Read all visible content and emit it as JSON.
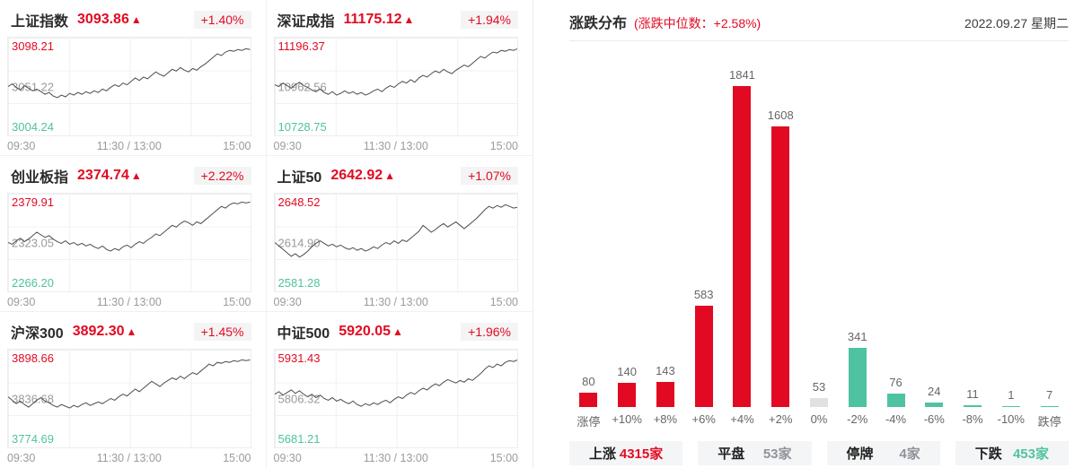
{
  "colors": {
    "up": "#e20a22",
    "down": "#4fc3a1",
    "neutral_bar": "#e1e1e1",
    "muted": "#8f9399",
    "line": "#4d4d4d",
    "grid": "#ededed",
    "badge_bg": "#f4f4f4",
    "stat_bg": "#f4f5f7",
    "axis": "#999999"
  },
  "mini_charts": [
    {
      "name": "上证指数",
      "price": "3093.86",
      "arrow": "▲",
      "change": "+1.40%",
      "high": "3098.21",
      "mid": "3051.22",
      "low": "3004.24",
      "x_labels": [
        "09:30",
        "11:30 / 13:00",
        "15:00"
      ],
      "points": [
        0.5,
        0.53,
        0.49,
        0.46,
        0.51,
        0.48,
        0.45,
        0.47,
        0.44,
        0.41,
        0.43,
        0.39,
        0.37,
        0.4,
        0.38,
        0.42,
        0.4,
        0.43,
        0.41,
        0.44,
        0.42,
        0.45,
        0.43,
        0.47,
        0.45,
        0.49,
        0.52,
        0.5,
        0.54,
        0.52,
        0.56,
        0.6,
        0.57,
        0.61,
        0.59,
        0.63,
        0.67,
        0.64,
        0.62,
        0.66,
        0.7,
        0.68,
        0.72,
        0.69,
        0.67,
        0.71,
        0.69,
        0.73,
        0.76,
        0.8,
        0.84,
        0.88,
        0.86,
        0.9,
        0.92,
        0.91,
        0.93,
        0.92,
        0.94,
        0.93
      ]
    },
    {
      "name": "深证成指",
      "price": "11175.12",
      "arrow": "▲",
      "change": "+1.94%",
      "high": "11196.37",
      "mid": "10962.56",
      "low": "10728.75",
      "x_labels": [
        "09:30",
        "11:30 / 13:00",
        "15:00"
      ],
      "points": [
        0.52,
        0.5,
        0.54,
        0.51,
        0.48,
        0.52,
        0.55,
        0.51,
        0.49,
        0.46,
        0.44,
        0.47,
        0.43,
        0.41,
        0.44,
        0.4,
        0.42,
        0.45,
        0.42,
        0.44,
        0.41,
        0.43,
        0.4,
        0.42,
        0.45,
        0.47,
        0.44,
        0.48,
        0.51,
        0.49,
        0.53,
        0.56,
        0.54,
        0.58,
        0.55,
        0.6,
        0.63,
        0.61,
        0.65,
        0.68,
        0.66,
        0.7,
        0.67,
        0.65,
        0.69,
        0.72,
        0.75,
        0.73,
        0.77,
        0.81,
        0.85,
        0.83,
        0.87,
        0.9,
        0.89,
        0.92,
        0.91,
        0.93,
        0.92,
        0.94
      ]
    },
    {
      "name": "创业板指",
      "price": "2374.74",
      "arrow": "▲",
      "change": "+2.22%",
      "high": "2379.91",
      "mid": "2323.05",
      "low": "2266.20",
      "x_labels": [
        "09:30",
        "11:30 / 13:00",
        "15:00"
      ],
      "points": [
        0.5,
        0.48,
        0.52,
        0.55,
        0.51,
        0.54,
        0.58,
        0.62,
        0.59,
        0.56,
        0.58,
        0.54,
        0.51,
        0.49,
        0.52,
        0.48,
        0.5,
        0.47,
        0.49,
        0.46,
        0.48,
        0.45,
        0.43,
        0.46,
        0.42,
        0.4,
        0.43,
        0.41,
        0.45,
        0.47,
        0.44,
        0.48,
        0.51,
        0.49,
        0.53,
        0.56,
        0.6,
        0.58,
        0.62,
        0.66,
        0.7,
        0.68,
        0.72,
        0.75,
        0.73,
        0.7,
        0.74,
        0.72,
        0.76,
        0.8,
        0.84,
        0.88,
        0.92,
        0.9,
        0.94,
        0.96,
        0.95,
        0.97,
        0.96,
        0.97
      ]
    },
    {
      "name": "上证50",
      "price": "2642.92",
      "arrow": "▲",
      "change": "+1.07%",
      "high": "2648.52",
      "mid": "2614.90",
      "low": "2581.28",
      "x_labels": [
        "09:30",
        "11:30 / 13:00",
        "15:00"
      ],
      "points": [
        0.5,
        0.46,
        0.42,
        0.38,
        0.34,
        0.37,
        0.33,
        0.36,
        0.4,
        0.45,
        0.49,
        0.52,
        0.49,
        0.46,
        0.48,
        0.45,
        0.47,
        0.44,
        0.42,
        0.44,
        0.41,
        0.43,
        0.4,
        0.42,
        0.45,
        0.43,
        0.47,
        0.5,
        0.48,
        0.52,
        0.49,
        0.53,
        0.51,
        0.55,
        0.59,
        0.63,
        0.7,
        0.66,
        0.62,
        0.65,
        0.69,
        0.72,
        0.68,
        0.71,
        0.74,
        0.7,
        0.66,
        0.7,
        0.74,
        0.78,
        0.83,
        0.88,
        0.92,
        0.9,
        0.93,
        0.91,
        0.94,
        0.92,
        0.9,
        0.91
      ]
    },
    {
      "name": "沪深300",
      "price": "3892.30",
      "arrow": "▲",
      "change": "+1.45%",
      "high": "3898.66",
      "mid": "3836.68",
      "low": "3774.69",
      "x_labels": [
        "09:30",
        "11:30 / 13:00",
        "15:00"
      ],
      "points": [
        0.52,
        0.48,
        0.44,
        0.47,
        0.43,
        0.4,
        0.44,
        0.48,
        0.51,
        0.47,
        0.45,
        0.42,
        0.4,
        0.43,
        0.41,
        0.39,
        0.42,
        0.4,
        0.43,
        0.45,
        0.42,
        0.44,
        0.46,
        0.44,
        0.47,
        0.5,
        0.48,
        0.52,
        0.55,
        0.53,
        0.57,
        0.61,
        0.58,
        0.62,
        0.66,
        0.7,
        0.67,
        0.64,
        0.68,
        0.71,
        0.74,
        0.72,
        0.76,
        0.73,
        0.77,
        0.8,
        0.78,
        0.82,
        0.86,
        0.9,
        0.88,
        0.92,
        0.91,
        0.93,
        0.92,
        0.94,
        0.93,
        0.95,
        0.94,
        0.95
      ]
    },
    {
      "name": "中证500",
      "price": "5920.05",
      "arrow": "▲",
      "change": "+1.96%",
      "high": "5931.43",
      "mid": "5806.32",
      "low": "5681.21",
      "x_labels": [
        "09:30",
        "11:30 / 13:00",
        "15:00"
      ],
      "points": [
        0.55,
        0.58,
        0.54,
        0.57,
        0.6,
        0.56,
        0.59,
        0.55,
        0.52,
        0.55,
        0.51,
        0.54,
        0.5,
        0.48,
        0.51,
        0.47,
        0.49,
        0.46,
        0.44,
        0.47,
        0.43,
        0.41,
        0.44,
        0.42,
        0.45,
        0.43,
        0.46,
        0.48,
        0.45,
        0.49,
        0.52,
        0.5,
        0.54,
        0.57,
        0.55,
        0.59,
        0.62,
        0.6,
        0.64,
        0.67,
        0.65,
        0.69,
        0.72,
        0.7,
        0.68,
        0.71,
        0.69,
        0.73,
        0.71,
        0.75,
        0.79,
        0.84,
        0.88,
        0.86,
        0.9,
        0.88,
        0.92,
        0.94,
        0.93,
        0.95
      ]
    }
  ],
  "panel": {
    "title": "涨跌分布",
    "subtitle": "(涨跌中位数：+2.58%)",
    "date": "2022.09.27 星期二"
  },
  "chart_data": [
    {
      "type": "bar",
      "title": "涨跌分布",
      "subtitle": "涨跌中位数 +2.58%",
      "categories": [
        "涨停",
        "+10%",
        "+8%",
        "+6%",
        "+4%",
        "+2%",
        "0%",
        "-2%",
        "-4%",
        "-6%",
        "-8%",
        "-10%",
        "跌停"
      ],
      "values": [
        80,
        140,
        143,
        583,
        1841,
        1608,
        53,
        341,
        76,
        24,
        11,
        1,
        7
      ],
      "bar_colors": [
        "up",
        "up",
        "up",
        "up",
        "up",
        "up",
        "neutral_bar",
        "down",
        "down",
        "down",
        "down",
        "down",
        "down"
      ],
      "ylim": [
        0,
        1900
      ],
      "grid": false,
      "legend": "none",
      "data_labels": true
    },
    {
      "type": "line",
      "title": "上证指数",
      "current": 3093.86,
      "change_pct": "+1.40%",
      "y_ticks": [
        3098.21,
        3051.22,
        3004.24
      ],
      "x_ticks": [
        "09:30",
        "11:30 / 13:00",
        "15:00"
      ]
    },
    {
      "type": "line",
      "title": "深证成指",
      "current": 11175.12,
      "change_pct": "+1.94%",
      "y_ticks": [
        11196.37,
        10962.56,
        10728.75
      ],
      "x_ticks": [
        "09:30",
        "11:30 / 13:00",
        "15:00"
      ]
    },
    {
      "type": "line",
      "title": "创业板指",
      "current": 2374.74,
      "change_pct": "+2.22%",
      "y_ticks": [
        2379.91,
        2323.05,
        2266.2
      ],
      "x_ticks": [
        "09:30",
        "11:30 / 13:00",
        "15:00"
      ]
    },
    {
      "type": "line",
      "title": "上证50",
      "current": 2642.92,
      "change_pct": "+1.07%",
      "y_ticks": [
        2648.52,
        2614.9,
        2581.28
      ],
      "x_ticks": [
        "09:30",
        "11:30 / 13:00",
        "15:00"
      ]
    },
    {
      "type": "line",
      "title": "沪深300",
      "current": 3892.3,
      "change_pct": "+1.45%",
      "y_ticks": [
        3898.66,
        3836.68,
        3774.69
      ],
      "x_ticks": [
        "09:30",
        "11:30 / 13:00",
        "15:00"
      ]
    },
    {
      "type": "line",
      "title": "中证500",
      "current": 5920.05,
      "change_pct": "+1.96%",
      "y_ticks": [
        5931.43,
        5806.32,
        5681.21
      ],
      "x_ticks": [
        "09:30",
        "11:30 / 13:00",
        "15:00"
      ]
    }
  ],
  "stats": [
    {
      "label": "上涨",
      "value": "4315家"
    },
    {
      "label": "平盘",
      "value": "53家"
    },
    {
      "label": "停牌",
      "value": "4家"
    },
    {
      "label": "下跌",
      "value": "453家"
    }
  ]
}
